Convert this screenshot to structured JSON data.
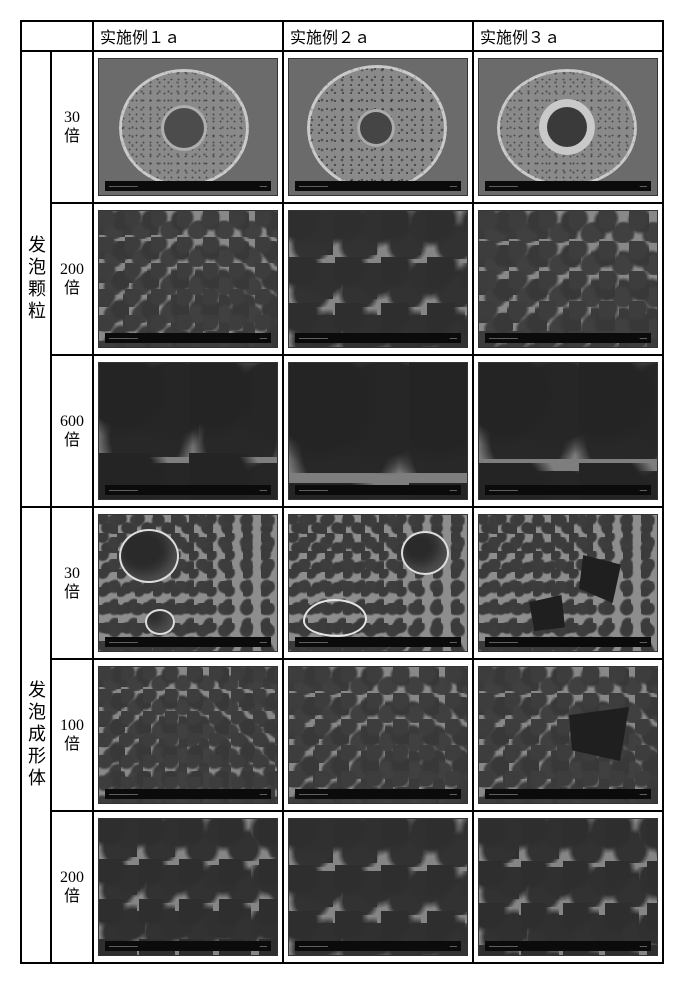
{
  "columns": {
    "c1": "实施例１ａ",
    "c2": "实施例２ａ",
    "c3": "实施例３ａ"
  },
  "groups": {
    "g1": "发泡颗粒",
    "g2": "发泡成形体"
  },
  "mags": {
    "g1r1": "30\n倍",
    "g1r2": "200\n倍",
    "g1r3": "600\n倍",
    "g2r1": "30\n倍",
    "g2r2": "100\n倍",
    "g2r3": "200\n倍"
  },
  "barTextLeft": "————————",
  "barTextRight": "——"
}
